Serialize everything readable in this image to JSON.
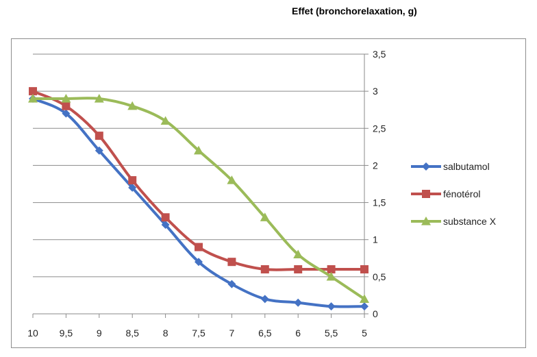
{
  "chart_data": {
    "type": "line",
    "title": "Effet (bronchorelaxation, g)",
    "x": [
      10,
      9.5,
      9,
      8.5,
      8,
      7.5,
      7,
      6.5,
      6,
      5.5,
      5
    ],
    "x_tick_labels": [
      "10",
      "9,5",
      "9",
      "8,5",
      "8",
      "7,5",
      "7",
      "6,5",
      "6",
      "5,5",
      "5"
    ],
    "x_reversed": true,
    "y_tick_labels": [
      "0",
      "0,5",
      "1",
      "1,5",
      "2",
      "2,5",
      "3",
      "3,5"
    ],
    "y_ticks": [
      0,
      0.5,
      1,
      1.5,
      2,
      2.5,
      3,
      3.5
    ],
    "ylim": [
      0,
      3.5
    ],
    "y_axis_position": "right",
    "grid": true,
    "legend_position": "right",
    "series": [
      {
        "name": "salbutamol",
        "color": "#4472C4",
        "marker": "diamond",
        "values": [
          2.9,
          2.7,
          2.2,
          1.7,
          1.2,
          0.7,
          0.4,
          0.2,
          0.15,
          0.1,
          0.1
        ]
      },
      {
        "name": "fénotérol",
        "color": "#C0504D",
        "marker": "square",
        "values": [
          3.0,
          2.8,
          2.4,
          1.8,
          1.3,
          0.9,
          0.7,
          0.6,
          0.6,
          0.6,
          0.6
        ]
      },
      {
        "name": "substance X",
        "color": "#9BBB59",
        "marker": "triangle",
        "values": [
          2.9,
          2.9,
          2.9,
          2.8,
          2.6,
          2.2,
          1.8,
          1.3,
          0.8,
          0.5,
          0.2
        ]
      }
    ]
  }
}
